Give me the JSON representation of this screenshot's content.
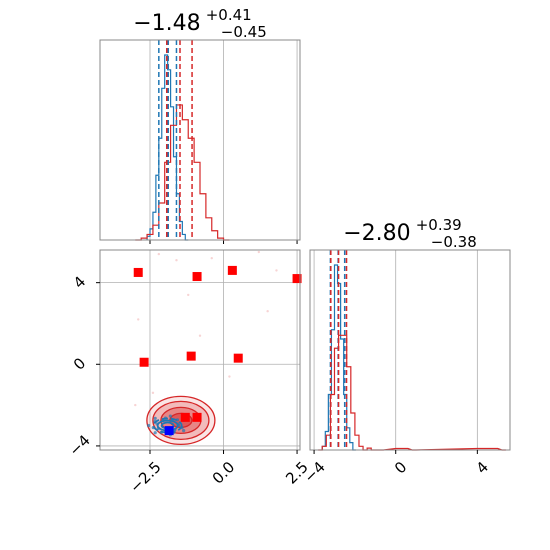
{
  "chart_data": {
    "type": "corner",
    "parameters": [
      {
        "title_main": "−1.48",
        "title_sup": "+0.41",
        "title_sub": "−0.45",
        "range": [
          -4.2,
          2.6
        ]
      },
      {
        "title_main": "−2.80",
        "title_sup": "+0.39",
        "title_sub": "−0.38",
        "range": [
          -4.2,
          5.6
        ]
      }
    ],
    "x_ticks_param1": [
      {
        "value": -2.5,
        "label": "−2.5"
      },
      {
        "value": 0.0,
        "label": "0.0"
      },
      {
        "value": 2.5,
        "label": "2.5"
      }
    ],
    "y_ticks_param2": [
      {
        "value": 4,
        "label": "4"
      },
      {
        "value": 0,
        "label": "0"
      },
      {
        "value": -4,
        "label": "−4"
      }
    ],
    "x_ticks_param2": [
      {
        "value": -4,
        "label": "−4"
      },
      {
        "value": 0,
        "label": "0"
      },
      {
        "value": 4,
        "label": "4"
      }
    ],
    "grid": true,
    "colors": {
      "blue": "#1f77b4",
      "red": "#d62728",
      "marker_red": "#ff0000",
      "marker_blue": "#0000ff",
      "grid": "#b0b0b0"
    },
    "series_blue": {
      "quantiles_p1": [
        -2.2,
        -1.88,
        -1.6
      ],
      "quantiles_p2": [
        -3.2,
        -2.82,
        -2.5
      ],
      "hist_p1": {
        "x": [
          -2.6,
          -2.5,
          -2.4,
          -2.3,
          -2.2,
          -2.1,
          -2.0,
          -1.9,
          -1.8,
          -1.7,
          -1.6,
          -1.5,
          -1.4,
          -1.3
        ],
        "counts": [
          0.02,
          0.06,
          0.15,
          0.35,
          0.55,
          0.82,
          1.0,
          0.92,
          0.72,
          0.45,
          0.25,
          0.1,
          0.03,
          0.0
        ]
      },
      "hist_p2": {
        "x": [
          -3.6,
          -3.45,
          -3.3,
          -3.15,
          -3.0,
          -2.85,
          -2.7,
          -2.55,
          -2.4,
          -2.25,
          -2.1
        ],
        "counts": [
          0.02,
          0.1,
          0.3,
          0.65,
          1.0,
          0.9,
          0.6,
          0.3,
          0.12,
          0.04,
          0.0
        ]
      },
      "contour_center": [
        -1.9,
        -3.0
      ]
    },
    "series_red": {
      "quantiles_p1": [
        -1.93,
        -1.48,
        -1.07
      ],
      "quantiles_p2": [
        -3.18,
        -2.8,
        -2.41
      ],
      "hist_p1": {
        "x": [
          -3.0,
          -2.8,
          -2.6,
          -2.4,
          -2.2,
          -2.0,
          -1.8,
          -1.6,
          -1.4,
          -1.2,
          -1.0,
          -0.8,
          -0.6,
          -0.4,
          -0.2,
          0.0
        ],
        "counts": [
          0.0,
          0.01,
          0.03,
          0.08,
          0.2,
          0.42,
          0.62,
          0.73,
          0.65,
          0.55,
          0.42,
          0.25,
          0.12,
          0.05,
          0.01,
          0.0
        ]
      },
      "hist_p2": {
        "x": [
          -3.8,
          -3.6,
          -3.4,
          -3.2,
          -3.0,
          -2.8,
          -2.6,
          -2.4,
          -2.2,
          -2.0,
          -1.8,
          -1.6,
          -1.4,
          -1.2,
          -1.0,
          -0.8,
          0.0,
          0.4,
          0.8,
          4.0,
          4.4,
          4.8,
          5.2
        ],
        "counts": [
          0.0,
          0.02,
          0.08,
          0.3,
          0.55,
          0.62,
          0.62,
          0.45,
          0.2,
          0.08,
          0.02,
          0.0,
          0.01,
          0.0,
          0.0,
          0.0,
          0.008,
          0.008,
          0.0,
          0.008,
          0.008,
          0.008,
          0.0
        ]
      },
      "contour_center": [
        -1.45,
        -2.75
      ]
    },
    "scatter_red_squares": [
      {
        "x": -2.9,
        "y": 4.5
      },
      {
        "x": -0.9,
        "y": 4.3
      },
      {
        "x": 0.3,
        "y": 4.6
      },
      {
        "x": 2.5,
        "y": 4.2
      },
      {
        "x": -2.7,
        "y": 0.1
      },
      {
        "x": -1.1,
        "y": 0.4
      },
      {
        "x": 0.5,
        "y": 0.3
      },
      {
        "x": -1.3,
        "y": -2.6
      },
      {
        "x": -0.9,
        "y": -2.6
      }
    ],
    "scatter_blue_square": {
      "x": -1.85,
      "y": -3.25
    }
  }
}
